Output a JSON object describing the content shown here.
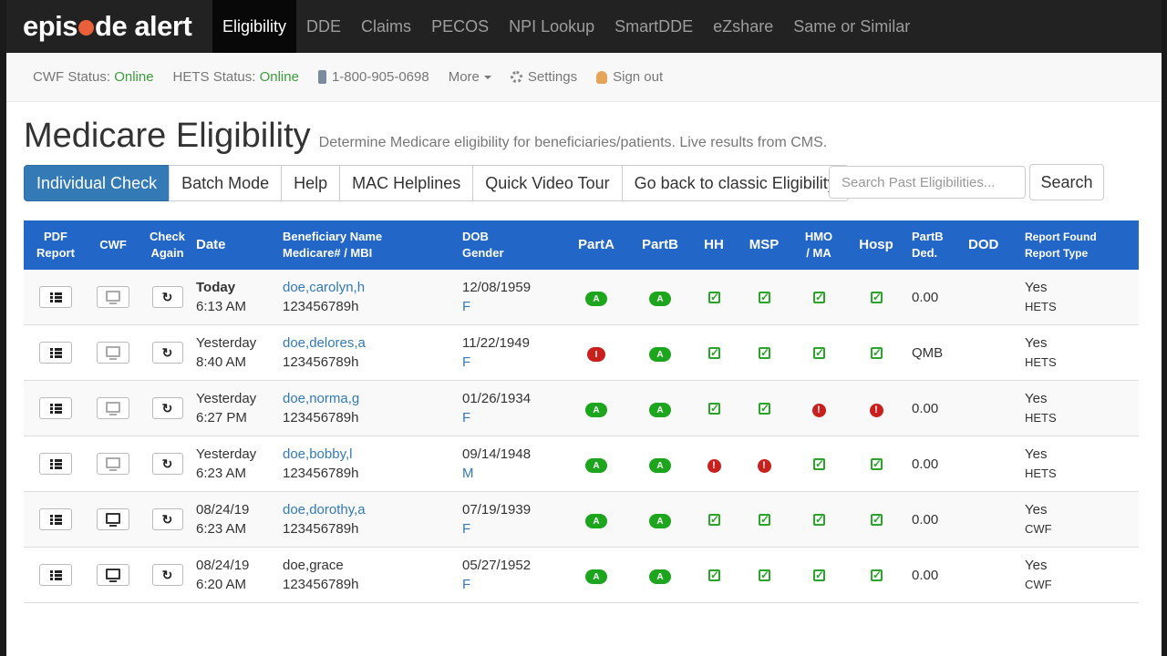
{
  "brand": {
    "logo_text_1": "epis",
    "logo_text_2": "de alert"
  },
  "nav": {
    "items": [
      {
        "label": "Eligibility",
        "active": true
      },
      {
        "label": "DDE"
      },
      {
        "label": "Claims"
      },
      {
        "label": "PECOS"
      },
      {
        "label": "NPI Lookup"
      },
      {
        "label": "SmartDDE"
      },
      {
        "label": "eZshare"
      },
      {
        "label": "Same or Similar"
      }
    ]
  },
  "status": {
    "cwf_label": "CWF Status:",
    "cwf_value": "Online",
    "hets_label": "HETS Status:",
    "hets_value": "Online",
    "phone": "1-800-905-0698",
    "more": "More",
    "settings": "Settings",
    "signout": "Sign out"
  },
  "page": {
    "title": "Medicare Eligibility",
    "subtitle": "Determine Medicare eligibility for beneficiaries/patients. Live results from CMS."
  },
  "tabs": [
    "Individual Check",
    "Batch Mode",
    "Help",
    "MAC Helplines",
    "Quick Video Tour",
    "Go back to classic Eligibility"
  ],
  "search": {
    "placeholder": "Search Past Eligibilities...",
    "button": "Search"
  },
  "table": {
    "headers": {
      "pdf_1": "PDF",
      "pdf_2": "Report",
      "cwf": "CWF",
      "check_1": "Check",
      "check_2": "Again",
      "date": "Date",
      "name_1": "Beneficiary Name",
      "name_2": "Medicare# / MBI",
      "dob_1": "DOB",
      "dob_2": "Gender",
      "parta": "PartA",
      "partb": "PartB",
      "hh": "HH",
      "msp": "MSP",
      "hmo_1": "HMO",
      "hmo_2": "/ MA",
      "hosp": "Hosp",
      "ded_1": "PartB",
      "ded_2": "Ded.",
      "dod": "DOD",
      "report_1": "Report Found",
      "report_2": "Report Type"
    },
    "rows": [
      {
        "date": "Today",
        "time": "6:13 AM",
        "name": "doe,carolyn,h",
        "mbi": "123456789h",
        "dob": "12/08/1959",
        "gender": "F",
        "parta": "A",
        "partb": "A",
        "hh": "check",
        "msp": "check",
        "hmo": "check",
        "hosp": "check",
        "ded": "0.00",
        "found": "Yes",
        "type": "HETS"
      },
      {
        "date": "Yesterday",
        "time": "8:40 AM",
        "name": "doe,delores,a",
        "mbi": "123456789h",
        "dob": "11/22/1949",
        "gender": "F",
        "parta": "I",
        "partb": "A",
        "hh": "check",
        "msp": "check",
        "hmo": "check",
        "hosp": "check",
        "ded": "QMB",
        "found": "Yes",
        "type": "HETS"
      },
      {
        "date": "Yesterday",
        "time": "6:27 PM",
        "name": "doe,norma,g",
        "mbi": "123456789h",
        "dob": "01/26/1934",
        "gender": "F",
        "parta": "A",
        "partb": "A",
        "hh": "check",
        "msp": "check",
        "hmo": "warn",
        "hosp": "warn",
        "ded": "0.00",
        "found": "Yes",
        "type": "HETS"
      },
      {
        "date": "Yesterday",
        "time": "6:23 AM",
        "name": "doe,bobby,l",
        "mbi": "123456789h",
        "dob": "09/14/1948",
        "gender": "M",
        "parta": "A",
        "partb": "A",
        "hh": "warn",
        "msp": "warn",
        "hmo": "check",
        "hosp": "check",
        "ded": "0.00",
        "found": "Yes",
        "type": "HETS"
      },
      {
        "date": "08/24/19",
        "time": "6:23 AM",
        "name": "doe,dorothy,a",
        "mbi": "123456789h",
        "dob": "07/19/1939",
        "gender": "F",
        "parta": "A",
        "partb": "A",
        "hh": "check",
        "msp": "check",
        "hmo": "check",
        "hosp": "check",
        "ded": "0.00",
        "found": "Yes",
        "type": "CWF"
      },
      {
        "date": "08/24/19",
        "time": "6:20 AM",
        "name": "doe,grace",
        "mbi": "123456789h",
        "dob": "05/27/1952",
        "gender": "F",
        "parta": "A",
        "partb": "A",
        "hh": "check",
        "msp": "check",
        "hmo": "check",
        "hosp": "check",
        "ded": "0.00",
        "found": "Yes",
        "type": "CWF"
      }
    ]
  },
  "colors": {
    "accent": "#337ab7",
    "header_blue": "#2266c7",
    "online": "#3c9b3c",
    "status_green": "#1ea51e",
    "status_red": "#c9201e"
  }
}
